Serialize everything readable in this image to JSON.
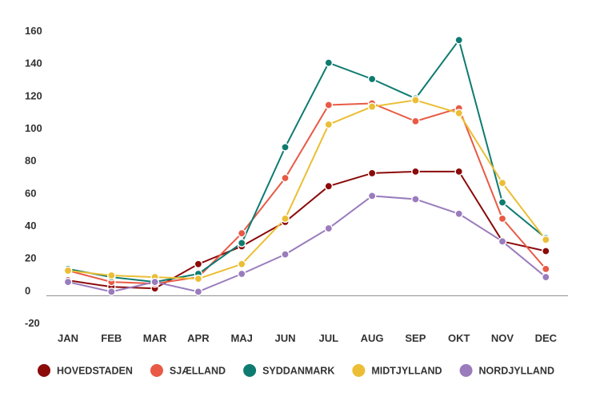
{
  "chart_data": {
    "type": "line",
    "categories": [
      "JAN",
      "FEB",
      "MAR",
      "APR",
      "MAJ",
      "JUN",
      "JUL",
      "AUG",
      "SEP",
      "OKT",
      "NOV",
      "DEC"
    ],
    "ylim": [
      -20,
      160
    ],
    "yticks": [
      -20,
      0,
      20,
      40,
      60,
      80,
      100,
      120,
      140,
      160
    ],
    "grid": false,
    "legend": "bottom",
    "series": [
      {
        "name": "HOVEDSTADEN",
        "color": "#8B0A0A",
        "values": [
          6,
          2,
          1,
          16,
          27,
          42,
          64,
          72,
          73,
          73,
          30,
          24
        ]
      },
      {
        "name": "SJÆLLAND",
        "color": "#E85A45",
        "values": [
          12,
          5,
          4,
          8,
          35,
          69,
          114,
          115,
          104,
          112,
          44,
          13
        ]
      },
      {
        "name": "SYDDANMARK",
        "color": "#0E7B70",
        "values": [
          13,
          8,
          5,
          10,
          29,
          88,
          140,
          130,
          118,
          154,
          54,
          32
        ]
      },
      {
        "name": "MIDTJYLLAND",
        "color": "#EBBE35",
        "values": [
          12,
          9,
          8,
          7,
          16,
          44,
          102,
          113,
          117,
          109,
          66,
          31
        ]
      },
      {
        "name": "NORDJYLLAND",
        "color": "#9A7CBD",
        "values": [
          5,
          -1,
          5,
          -1,
          10,
          22,
          38,
          58,
          56,
          47,
          30,
          8
        ]
      }
    ]
  }
}
